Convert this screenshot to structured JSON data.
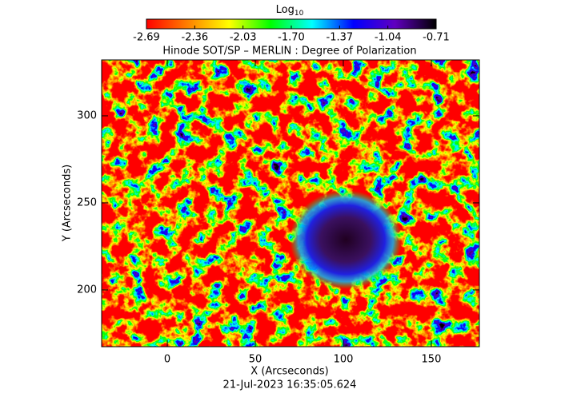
{
  "chart_data": {
    "type": "image",
    "title": "Hinode SOT/SP – MERLIN : Degree of Polarization",
    "x_label": "X (Arcseconds)",
    "y_label": "Y (Arcseconds)",
    "timestamp": "21-Jul-2023 16:35:05.624",
    "xlim": [
      -37.3,
      177.3
    ],
    "ylim": [
      167.4,
      332.1
    ],
    "xticks": [
      0,
      50,
      100,
      150
    ],
    "yticks": [
      200,
      250,
      300
    ],
    "colorbar": {
      "label": "Log",
      "label_subscript": "10",
      "lim": [
        -2.69,
        -0.71
      ],
      "ticks": [
        -2.69,
        -2.36,
        -2.03,
        {
          "value": -1.7,
          "label": "-1.70"
        },
        -1.37,
        -1.04,
        -0.71
      ],
      "colormap": [
        "#ff0000",
        "#ff8000",
        "#ffff00",
        "#00ff00",
        "#00ffff",
        "#0000ff",
        "#6000c0",
        "#000000"
      ]
    }
  }
}
